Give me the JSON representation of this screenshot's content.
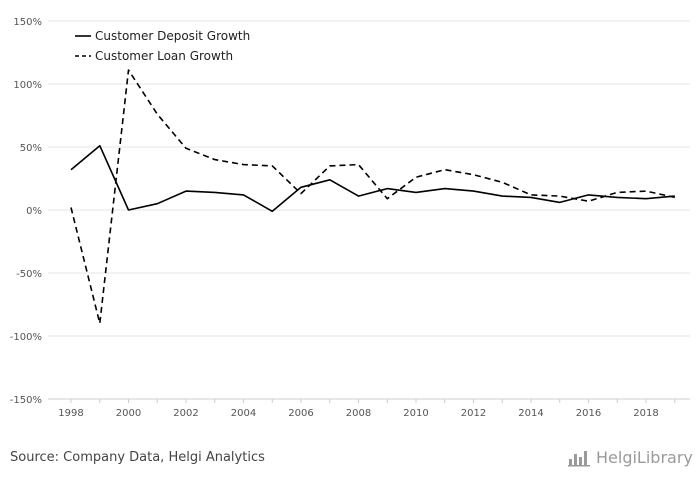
{
  "chart_data": {
    "type": "line",
    "x": [
      1998,
      1999,
      2000,
      2001,
      2002,
      2003,
      2004,
      2005,
      2006,
      2007,
      2008,
      2009,
      2010,
      2011,
      2012,
      2013,
      2014,
      2015,
      2016,
      2017,
      2018,
      2019
    ],
    "series": [
      {
        "name": "Customer Deposit Growth",
        "values": [
          32,
          51,
          0,
          5,
          15,
          14,
          12,
          -1,
          18,
          24,
          11,
          17,
          14,
          17,
          15,
          11,
          10,
          6,
          12,
          10,
          9,
          11
        ],
        "dash": "solid"
      },
      {
        "name": "Customer Loan Growth",
        "values": [
          2,
          -90,
          111,
          76,
          49,
          40,
          36,
          35,
          13,
          35,
          36,
          9,
          26,
          32,
          28,
          22,
          12,
          11,
          7,
          14,
          15,
          10
        ],
        "dash": "dashed"
      }
    ],
    "yticks": [
      150,
      100,
      50,
      0,
      -50,
      -100,
      -150
    ],
    "ytick_labels": [
      "150%",
      "100%",
      "50%",
      "0%",
      "-50%",
      "-100%",
      "-150%"
    ],
    "xticks": [
      1998,
      2000,
      2002,
      2004,
      2006,
      2008,
      2010,
      2012,
      2014,
      2016,
      2018
    ],
    "xtick_labels": [
      "1998",
      "2000",
      "2002",
      "2004",
      "2006",
      "2008",
      "2010",
      "2012",
      "2014",
      "2016",
      "2018"
    ],
    "ylim": [
      -150,
      150
    ],
    "xlim": [
      1998,
      2019
    ],
    "grid": true,
    "legend": "top-left"
  },
  "footer": {
    "source": "Source: Company Data, Helgi Analytics",
    "brand": "HelgiLibrary"
  },
  "colors": {
    "line": "#000000",
    "grid": "#e6e6e6",
    "axis": "#cccccc",
    "text": "#555555",
    "brand": "#9a9a9a"
  },
  "icons": {
    "brand": "helgi-library-logo-icon"
  }
}
